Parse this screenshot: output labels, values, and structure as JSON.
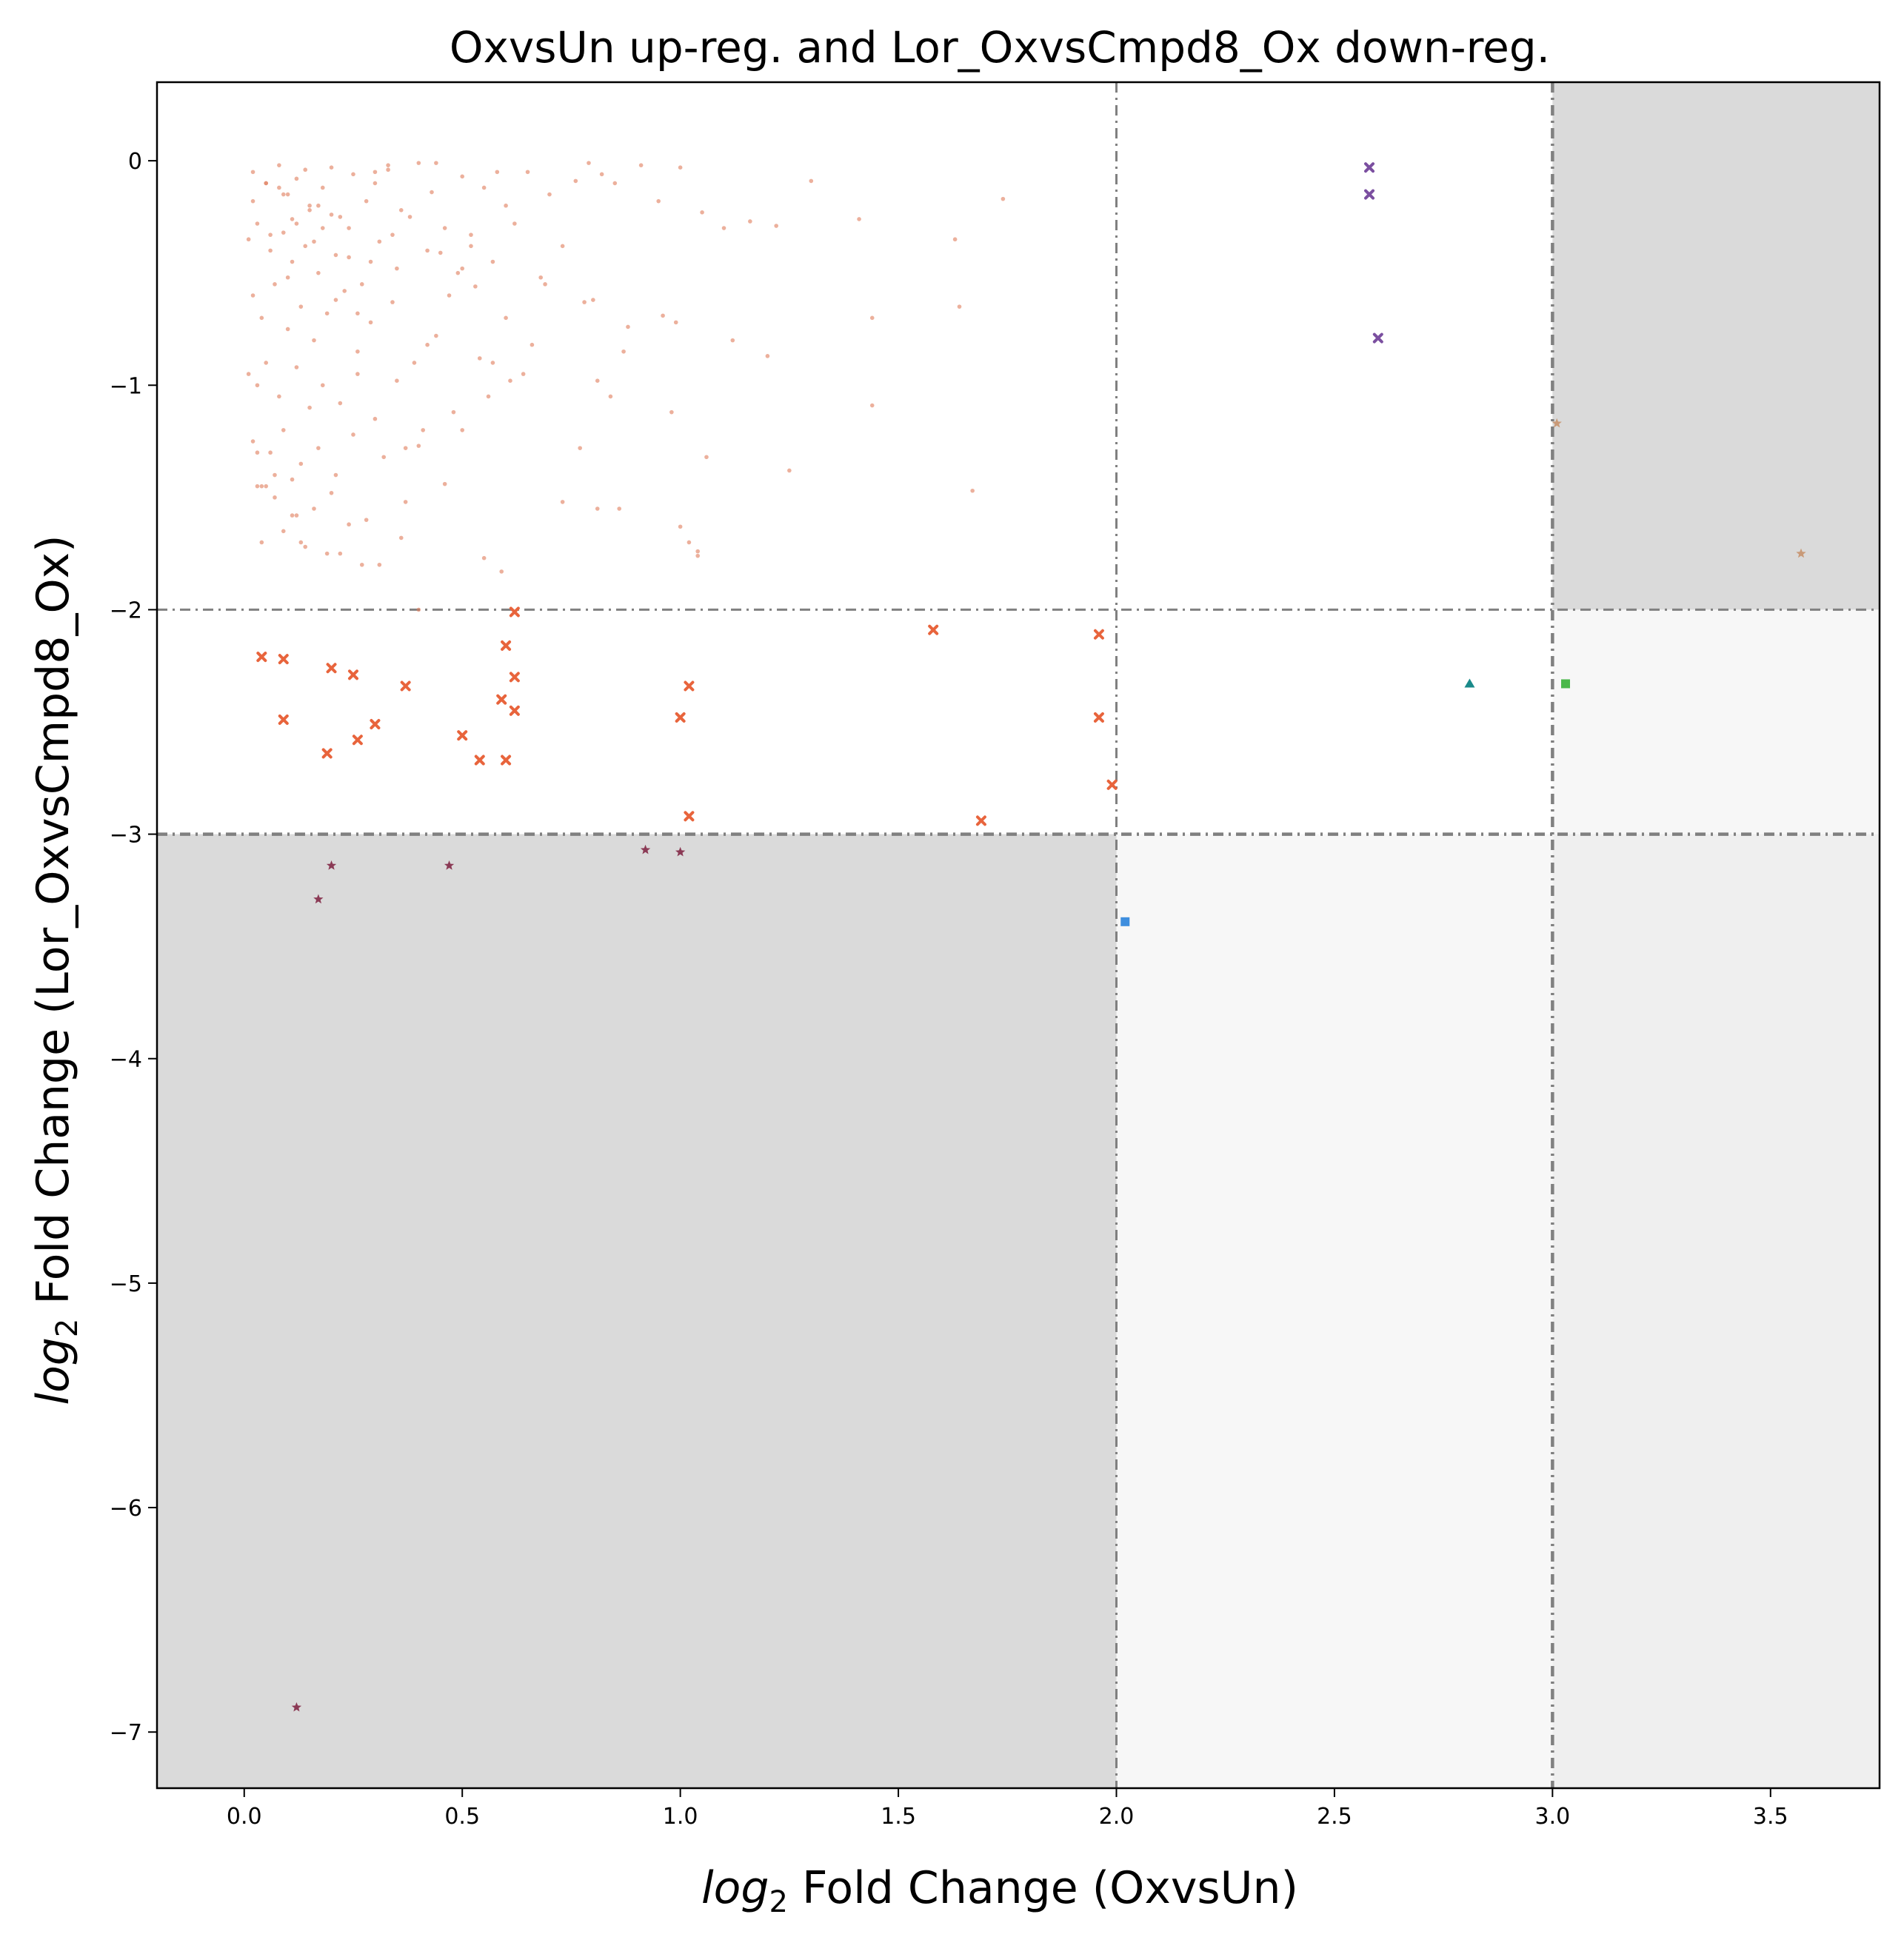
{
  "chart_data": {
    "type": "scatter",
    "title": "OxvsUn up-reg. and Lor_OxvsCmpd8_Ox down-reg.",
    "xlabel_prefix": "log",
    "xlabel_sub": "2",
    "xlabel_rest": " Fold Change (OxvsUn)",
    "ylabel_prefix": "log",
    "ylabel_sub": "2",
    "ylabel_rest": " Fold Change (Lor_OxvsCmpd8_Ox)",
    "xlim": [
      -0.2,
      3.75
    ],
    "ylim": [
      -7.25,
      0.35
    ],
    "xticks": [
      0.0,
      0.5,
      1.0,
      1.5,
      2.0,
      2.5,
      3.0,
      3.5
    ],
    "xtick_labels": [
      "0.0",
      "0.5",
      "1.0",
      "1.5",
      "2.0",
      "2.5",
      "3.0",
      "3.5"
    ],
    "yticks": [
      0,
      -1,
      -2,
      -3,
      -4,
      -5,
      -6,
      -7
    ],
    "ytick_labels": [
      "0",
      "−1",
      "−2",
      "−3",
      "−4",
      "−5",
      "−6",
      "−7"
    ],
    "grid": false,
    "thresholds": {
      "x": [
        2,
        3
      ],
      "y": [
        -2,
        -3
      ]
    },
    "regions": [
      {
        "x": [
          -0.2,
          2
        ],
        "y": [
          -7.25,
          -3
        ],
        "color": "#dadada"
      },
      {
        "x": [
          3,
          3.75
        ],
        "y": [
          -2,
          0.35
        ],
        "color": "#dadada"
      },
      {
        "x": [
          2,
          3
        ],
        "y": [
          -7.25,
          -3
        ],
        "color": "#f7f7f7"
      },
      {
        "x": [
          3,
          3.75
        ],
        "y": [
          -3,
          -2
        ],
        "color": "#f7f7f7"
      },
      {
        "x": [
          3,
          3.75
        ],
        "y": [
          -7.25,
          -3
        ],
        "color": "#efefef"
      }
    ],
    "series": [
      {
        "marker": "dot",
        "color": "#e07b5a",
        "x": [
          0.02,
          0.05,
          0.08,
          0.1,
          0.12,
          0.15,
          0.18,
          0.2,
          0.22,
          0.25,
          0.28,
          0.3,
          0.33,
          0.36,
          0.4,
          0.43,
          0.46,
          0.5,
          0.55,
          0.6,
          0.65,
          0.7,
          0.01,
          0.03,
          0.06,
          0.09,
          0.11,
          0.14,
          0.17,
          0.21,
          0.24,
          0.27,
          0.31,
          0.35,
          0.38,
          0.42,
          0.47,
          0.52,
          0.57,
          0.62,
          0.68,
          0.73,
          0.8,
          0.02,
          0.04,
          0.07,
          0.1,
          0.13,
          0.16,
          0.19,
          0.23,
          0.26,
          0.29,
          0.34,
          0.39,
          0.44,
          0.49,
          0.54,
          0.6,
          0.66,
          0.01,
          0.03,
          0.05,
          0.08,
          0.12,
          0.15,
          0.18,
          0.22,
          0.26,
          0.3,
          0.35,
          0.41,
          0.48,
          0.56,
          0.64,
          0.02,
          0.06,
          0.09,
          0.13,
          0.17,
          0.21,
          0.25,
          0.32,
          0.4,
          0.5,
          0.03,
          0.07,
          0.11,
          0.16,
          0.2,
          0.28,
          0.37,
          0.46,
          0.04,
          0.09,
          0.14,
          0.19,
          0.27,
          0.36,
          0.05,
          0.12,
          0.24,
          0.02,
          0.15,
          0.08,
          0.18,
          0.11,
          0.06,
          0.33,
          0.44,
          0.58,
          0.21,
          0.29,
          0.52,
          0.79,
          0.85,
          0.91,
          1.0,
          0.82,
          0.76,
          0.95,
          1.05,
          1.1,
          1.16,
          1.22,
          1.3,
          1.41,
          1.74,
          0.69,
          0.78,
          0.88,
          0.99,
          1.12,
          1.2,
          1.44,
          1.64,
          1.63,
          0.87,
          0.96,
          0.81,
          0.84,
          1.44,
          1.25,
          1.06,
          0.98,
          0.77,
          0.73,
          0.81,
          0.86,
          1.02,
          1.04,
          1.04,
          1.67,
          1.0,
          0.55,
          0.59,
          0.4,
          0.37,
          0.31,
          0.22,
          0.13,
          0.11,
          0.04,
          0.07,
          0.03,
          0.05,
          0.09,
          0.14,
          0.17,
          0.12,
          0.16,
          0.1,
          0.2,
          0.24,
          0.3,
          0.34,
          0.45,
          0.5,
          0.53,
          0.57,
          0.61,
          0.42,
          0.26
        ],
        "y": [
          -0.05,
          -0.1,
          -0.02,
          -0.15,
          -0.08,
          -0.2,
          -0.12,
          -0.03,
          -0.25,
          -0.06,
          -0.18,
          -0.1,
          -0.04,
          -0.22,
          -0.01,
          -0.14,
          -0.3,
          -0.07,
          -0.12,
          -0.2,
          -0.05,
          -0.15,
          -0.35,
          -0.28,
          -0.4,
          -0.32,
          -0.45,
          -0.38,
          -0.5,
          -0.42,
          -0.3,
          -0.55,
          -0.36,
          -0.48,
          -0.25,
          -0.4,
          -0.6,
          -0.33,
          -0.45,
          -0.28,
          -0.52,
          -0.38,
          -0.62,
          -0.6,
          -0.7,
          -0.55,
          -0.75,
          -0.65,
          -0.8,
          -0.68,
          -0.58,
          -0.85,
          -0.72,
          -0.63,
          -0.9,
          -0.78,
          -0.5,
          -0.88,
          -0.7,
          -0.82,
          -0.95,
          -1.0,
          -0.9,
          -1.05,
          -0.92,
          -1.1,
          -1.0,
          -1.08,
          -0.95,
          -1.15,
          -0.98,
          -1.2,
          -1.12,
          -1.05,
          -0.95,
          -1.25,
          -1.3,
          -1.2,
          -1.35,
          -1.28,
          -1.4,
          -1.22,
          -1.32,
          -1.27,
          -1.2,
          -1.45,
          -1.5,
          -1.42,
          -1.55,
          -1.48,
          -1.6,
          -1.52,
          -1.44,
          -1.7,
          -1.65,
          -1.72,
          -1.75,
          -1.8,
          -1.68,
          -1.45,
          -1.58,
          -1.62,
          -0.18,
          -0.22,
          -0.12,
          -0.3,
          -0.26,
          -0.33,
          -0.02,
          -0.01,
          -0.05,
          -0.62,
          -0.45,
          -0.38,
          -0.01,
          -0.1,
          -0.02,
          -0.03,
          -0.06,
          -0.09,
          -0.18,
          -0.23,
          -0.3,
          -0.27,
          -0.29,
          -0.09,
          -0.26,
          -0.17,
          -0.55,
          -0.63,
          -0.74,
          -0.72,
          -0.8,
          -0.87,
          -0.7,
          -0.65,
          -0.35,
          -0.85,
          -0.69,
          -0.98,
          -1.05,
          -1.09,
          -1.38,
          -1.32,
          -1.12,
          -1.28,
          -1.52,
          -1.55,
          -1.55,
          -1.7,
          -1.74,
          -1.76,
          -1.47,
          -1.63,
          -1.77,
          -1.83,
          -2.0,
          -1.28,
          -1.8,
          -1.75,
          -1.7,
          -1.58,
          -1.45,
          -1.4,
          -1.3,
          -0.1,
          -0.15,
          -0.04,
          -0.2,
          -0.28,
          -0.36,
          -0.52,
          -0.24,
          -0.43,
          -0.05,
          -0.33,
          -0.41,
          -0.48,
          -0.56,
          -0.9,
          -0.98,
          -0.82,
          -0.68
        ]
      },
      {
        "marker": "x",
        "color": "#e8643c",
        "x": [
          0.04,
          0.09,
          0.09,
          0.19,
          0.2,
          0.25,
          0.26,
          0.3,
          0.37,
          0.5,
          0.54,
          0.59,
          0.6,
          0.6,
          0.62,
          0.62,
          0.62,
          1.0,
          1.02,
          1.02,
          1.58,
          1.69,
          1.96,
          1.96,
          1.99
        ],
        "y": [
          -2.21,
          -2.22,
          -2.49,
          -2.64,
          -2.26,
          -2.29,
          -2.58,
          -2.51,
          -2.34,
          -2.56,
          -2.67,
          -2.4,
          -2.16,
          -2.67,
          -2.45,
          -2.3,
          -2.01,
          -2.48,
          -2.34,
          -2.92,
          -2.09,
          -2.94,
          -2.11,
          -2.48,
          -2.78
        ]
      },
      {
        "marker": "x",
        "color": "#7b4fa0",
        "x": [
          2.58,
          2.58,
          2.6
        ],
        "y": [
          -0.03,
          -0.15,
          -0.79
        ]
      },
      {
        "marker": "star",
        "color": "#8b3a55",
        "x": [
          0.12,
          0.17,
          0.2,
          0.47,
          0.92,
          1.0
        ],
        "y": [
          -6.89,
          -3.29,
          -3.14,
          -3.14,
          -3.07,
          -3.08
        ]
      },
      {
        "marker": "star",
        "color": "#c99a78",
        "x": [
          3.01,
          3.57
        ],
        "y": [
          -1.17,
          -1.75
        ]
      },
      {
        "marker": "triangle",
        "color": "#1a8a8a",
        "x": [
          2.81
        ],
        "y": [
          -2.33
        ]
      },
      {
        "marker": "square",
        "color": "#4ab84a",
        "x": [
          3.03
        ],
        "y": [
          -2.33
        ]
      },
      {
        "marker": "square",
        "color": "#3e8ede",
        "x": [
          2.02
        ],
        "y": [
          -3.39
        ]
      }
    ]
  }
}
